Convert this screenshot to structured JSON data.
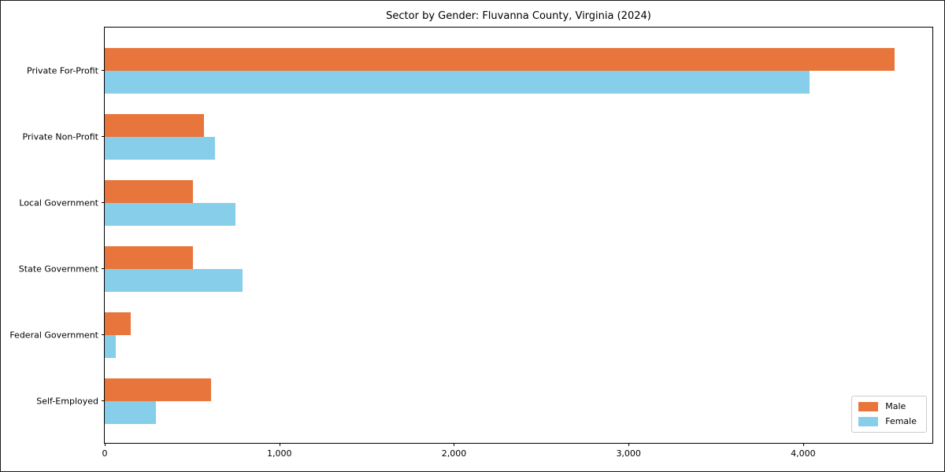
{
  "chart_data": {
    "type": "bar",
    "orientation": "horizontal",
    "title": "Sector by Gender: Fluvanna County, Virginia (2024)",
    "categories": [
      "Private For-Profit",
      "Private Non-Profit",
      "Local Government",
      "State Government",
      "Federal Government",
      "Self-Employed"
    ],
    "series": [
      {
        "name": "Male",
        "color": "#e8763c",
        "values": [
          4525,
          570,
          505,
          505,
          150,
          610
        ]
      },
      {
        "name": "Female",
        "color": "#87ceeb",
        "values": [
          4035,
          630,
          750,
          790,
          65,
          295
        ]
      }
    ],
    "xlabel": "",
    "ylabel": "",
    "xlim": [
      0,
      4740
    ],
    "xticks": {
      "values": [
        0,
        1000,
        2000,
        3000,
        4000
      ],
      "labels": [
        "0",
        "1,000",
        "2,000",
        "3,000",
        "4,000"
      ]
    },
    "grid": false,
    "legend": {
      "position": "lower right",
      "entries": [
        "Male",
        "Female"
      ]
    }
  }
}
